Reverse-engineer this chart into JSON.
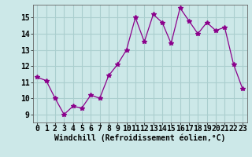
{
  "x": [
    0,
    1,
    2,
    3,
    4,
    5,
    6,
    7,
    8,
    9,
    10,
    11,
    12,
    13,
    14,
    15,
    16,
    17,
    18,
    19,
    20,
    21,
    22,
    23
  ],
  "y": [
    11.3,
    11.1,
    10.0,
    9.0,
    9.5,
    9.4,
    10.2,
    10.0,
    11.4,
    12.1,
    13.0,
    15.0,
    13.5,
    15.2,
    14.7,
    13.4,
    15.6,
    14.8,
    14.0,
    14.7,
    14.2,
    14.4,
    12.1,
    10.6
  ],
  "line_color": "#8B008B",
  "marker": "*",
  "marker_size": 4,
  "bg_color": "#cce8e8",
  "grid_color": "#aacece",
  "xlabel": "Windchill (Refroidissement éolien,°C)",
  "xlabel_fontsize": 7,
  "tick_fontsize": 7,
  "ylim": [
    8.5,
    15.8
  ],
  "xlim": [
    -0.5,
    23.5
  ],
  "yticks": [
    9,
    10,
    11,
    12,
    13,
    14,
    15
  ],
  "xticks": [
    0,
    1,
    2,
    3,
    4,
    5,
    6,
    7,
    8,
    9,
    10,
    11,
    12,
    13,
    14,
    15,
    16,
    17,
    18,
    19,
    20,
    21,
    22,
    23
  ]
}
